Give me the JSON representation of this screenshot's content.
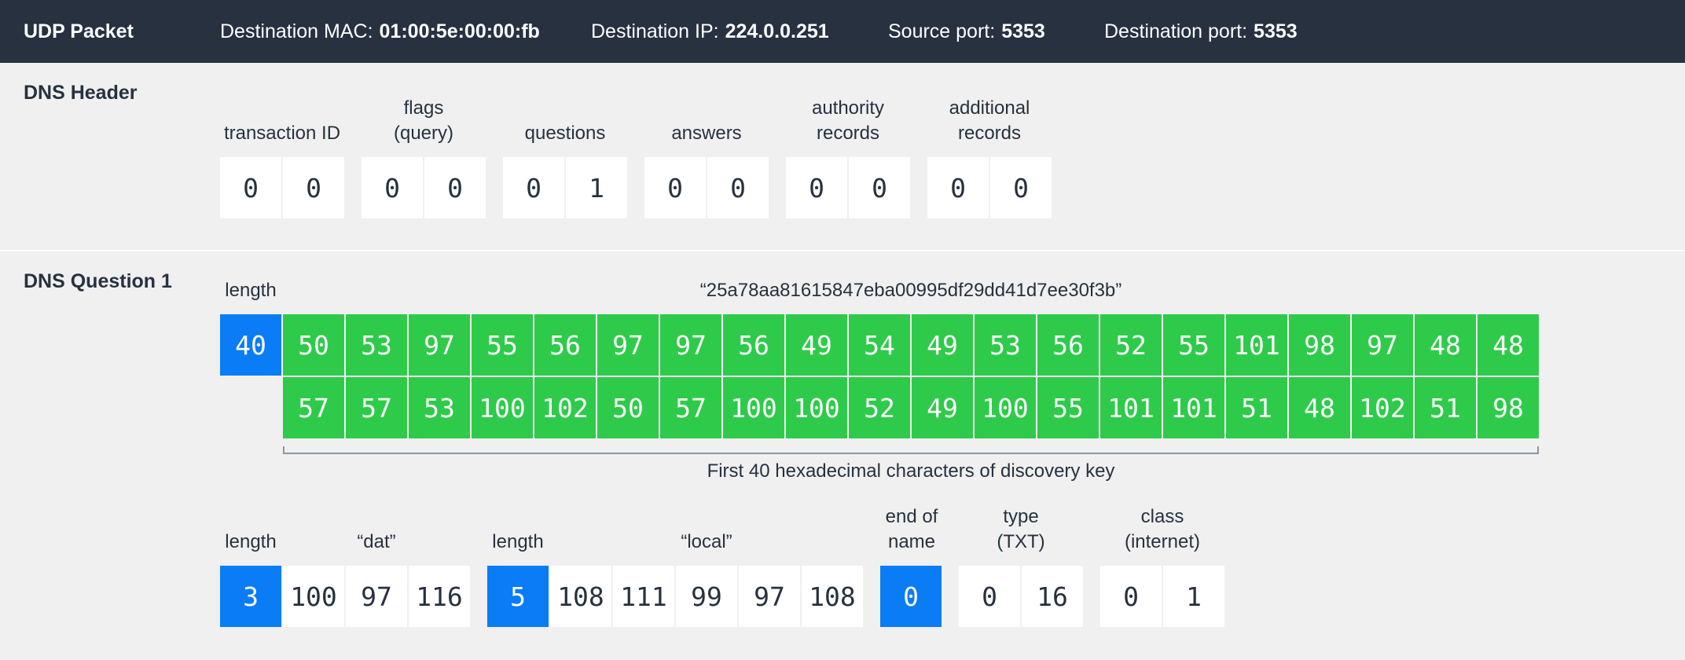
{
  "topbar": {
    "title": "UDP Packet",
    "fields": [
      {
        "label": "Destination MAC:",
        "value": "01:00:5e:00:00:fb"
      },
      {
        "label": "Destination IP:",
        "value": "224.0.0.251"
      },
      {
        "label": "Source port:",
        "value": "5353"
      },
      {
        "label": "Destination port:",
        "value": "5353"
      }
    ]
  },
  "header": {
    "title": "DNS Header",
    "groups": [
      {
        "label": "transaction ID",
        "bytes": [
          "0",
          "0"
        ]
      },
      {
        "label": "flags\n(query)",
        "bytes": [
          "0",
          "0"
        ]
      },
      {
        "label": "questions",
        "bytes": [
          "0",
          "1"
        ]
      },
      {
        "label": "answers",
        "bytes": [
          "0",
          "0"
        ]
      },
      {
        "label": "authority\nrecords",
        "bytes": [
          "0",
          "0"
        ]
      },
      {
        "label": "additional\nrecords",
        "bytes": [
          "0",
          "0"
        ]
      }
    ]
  },
  "question": {
    "title": "DNS Question 1",
    "length_label": "length",
    "length_value": "40",
    "string_label": "“25a78aa81615847eba00995df29dd41d7ee30f3b”",
    "row1": [
      "50",
      "53",
      "97",
      "55",
      "56",
      "97",
      "97",
      "56",
      "49",
      "54",
      "49",
      "53",
      "56",
      "52",
      "55",
      "101",
      "98",
      "97",
      "48",
      "48"
    ],
    "row2": [
      "57",
      "57",
      "53",
      "100",
      "102",
      "50",
      "57",
      "100",
      "100",
      "52",
      "49",
      "100",
      "55",
      "101",
      "101",
      "51",
      "48",
      "102",
      "51",
      "98"
    ],
    "bracket_label": "First 40 hexadecimal characters of discovery key",
    "dat": {
      "length_label": "length",
      "length_value": "3",
      "label": "“dat”",
      "bytes": [
        "100",
        "97",
        "116"
      ]
    },
    "local": {
      "length_label": "length",
      "length_value": "5",
      "label": "“local”",
      "bytes": [
        "108",
        "111",
        "99",
        "97",
        "108"
      ]
    },
    "end": {
      "label": "end of\nname",
      "value": "0"
    },
    "type": {
      "label": "type\n(TXT)",
      "bytes": [
        "0",
        "16"
      ]
    },
    "class": {
      "label": "class\n(internet)",
      "bytes": [
        "0",
        "1"
      ]
    }
  },
  "colors": {
    "blue": "#0a7cf5",
    "green": "#2ecb4a",
    "dark": "#27313f"
  }
}
